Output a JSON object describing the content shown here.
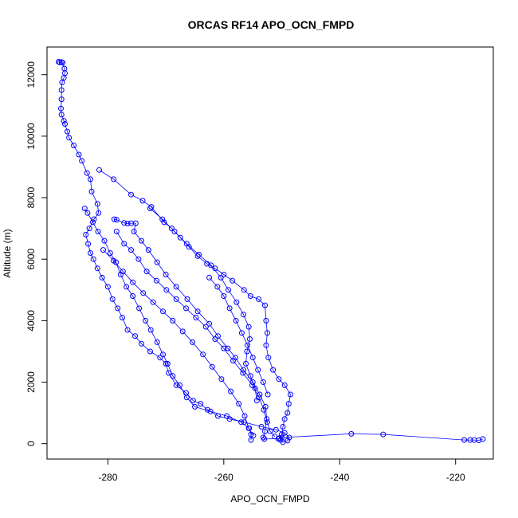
{
  "chart_data": {
    "type": "scatter",
    "title": "ORCAS RF14 APO_OCN_FMPD",
    "xlabel": "APO_OCN_FMPD",
    "ylabel": "Altitude (m)",
    "xlim": [
      -290.5,
      -213.5
    ],
    "ylim": [
      -500,
      12900
    ],
    "x_ticks": [
      -280,
      -260,
      -240,
      -220
    ],
    "x_tick_labels": [
      "-280",
      "-260",
      "-240",
      "-220"
    ],
    "y_ticks": [
      0,
      2000,
      4000,
      6000,
      8000,
      10000,
      12000
    ],
    "y_tick_labels": [
      "0",
      "2000",
      "4000",
      "6000",
      "8000",
      "10000",
      "12000"
    ],
    "grid": false,
    "legend": "none",
    "marker": "open-circle",
    "color": "#0000ff",
    "connected": true,
    "series": [
      {
        "values": [
          {
            "x": -288.5,
            "y": 12420
          },
          {
            "x": -288.3,
            "y": 12400
          },
          {
            "x": -288.0,
            "y": 12410
          },
          {
            "x": -287.8,
            "y": 12390
          },
          {
            "x": -287.5,
            "y": 12200
          },
          {
            "x": -287.4,
            "y": 12050
          },
          {
            "x": -287.6,
            "y": 11900
          },
          {
            "x": -287.9,
            "y": 11750
          },
          {
            "x": -288.0,
            "y": 11500
          },
          {
            "x": -288.0,
            "y": 11200
          },
          {
            "x": -288.1,
            "y": 10900
          },
          {
            "x": -288.0,
            "y": 10700
          },
          {
            "x": -287.6,
            "y": 10500
          },
          {
            "x": -287.4,
            "y": 10400
          },
          {
            "x": -287.0,
            "y": 10150
          },
          {
            "x": -286.7,
            "y": 9950
          },
          {
            "x": -285.9,
            "y": 9700
          },
          {
            "x": -285.0,
            "y": 9400
          },
          {
            "x": -284.5,
            "y": 9200
          },
          {
            "x": -283.6,
            "y": 8800
          },
          {
            "x": -283.0,
            "y": 8600
          },
          {
            "x": -282.8,
            "y": 8200
          },
          {
            "x": -281.8,
            "y": 7800
          },
          {
            "x": -281.6,
            "y": 7500
          },
          {
            "x": -282.4,
            "y": 7300
          },
          {
            "x": -283.2,
            "y": 7000
          },
          {
            "x": -283.8,
            "y": 6800
          },
          {
            "x": -283.4,
            "y": 6500
          },
          {
            "x": -283.0,
            "y": 6200
          },
          {
            "x": -282.5,
            "y": 6000
          },
          {
            "x": -281.8,
            "y": 5700
          },
          {
            "x": -281.0,
            "y": 5400
          },
          {
            "x": -280.0,
            "y": 5100
          },
          {
            "x": -279.2,
            "y": 4700
          },
          {
            "x": -278.3,
            "y": 4400
          },
          {
            "x": -277.5,
            "y": 4100
          },
          {
            "x": -276.6,
            "y": 3700
          },
          {
            "x": -275.3,
            "y": 3500
          },
          {
            "x": -274.2,
            "y": 3250
          },
          {
            "x": -272.7,
            "y": 3000
          },
          {
            "x": -271.0,
            "y": 2800
          },
          {
            "x": -270.0,
            "y": 2600
          },
          {
            "x": -269.5,
            "y": 2300
          },
          {
            "x": -268.2,
            "y": 1900
          },
          {
            "x": -266.5,
            "y": 1650
          },
          {
            "x": -265.3,
            "y": 1400
          },
          {
            "x": -264.0,
            "y": 1300
          },
          {
            "x": -262.8,
            "y": 1100
          },
          {
            "x": -261.0,
            "y": 900
          },
          {
            "x": -259.0,
            "y": 800
          },
          {
            "x": -256.5,
            "y": 700
          },
          {
            "x": -253.5,
            "y": 550
          },
          {
            "x": -251.0,
            "y": 450
          },
          {
            "x": -249.5,
            "y": 350
          },
          {
            "x": -248.7,
            "y": 200
          },
          {
            "x": -249.0,
            "y": 100
          },
          {
            "x": -249.8,
            "y": 50
          },
          {
            "x": -250.2,
            "y": 120
          },
          {
            "x": -250.0,
            "y": 300
          },
          {
            "x": -249.8,
            "y": 550
          },
          {
            "x": -249.5,
            "y": 800
          },
          {
            "x": -249.0,
            "y": 1000
          },
          {
            "x": -248.8,
            "y": 1300
          },
          {
            "x": -248.5,
            "y": 1600
          },
          {
            "x": -249.5,
            "y": 1900
          },
          {
            "x": -250.5,
            "y": 2100
          },
          {
            "x": -251.5,
            "y": 2400
          },
          {
            "x": -252.3,
            "y": 2800
          },
          {
            "x": -252.7,
            "y": 3200
          },
          {
            "x": -252.5,
            "y": 3600
          },
          {
            "x": -252.7,
            "y": 4000
          },
          {
            "x": -252.9,
            "y": 4500
          },
          {
            "x": -254.0,
            "y": 4700
          },
          {
            "x": -255.4,
            "y": 4800
          },
          {
            "x": -256.5,
            "y": 5000
          },
          {
            "x": -258.5,
            "y": 5300
          },
          {
            "x": -260.0,
            "y": 5500
          },
          {
            "x": -261.5,
            "y": 5700
          },
          {
            "x": -262.9,
            "y": 5850
          },
          {
            "x": -264.5,
            "y": 6100
          },
          {
            "x": -266.0,
            "y": 6400
          },
          {
            "x": -267.5,
            "y": 6700
          },
          {
            "x": -269.0,
            "y": 7000
          },
          {
            "x": -270.3,
            "y": 7200
          },
          {
            "x": -272.5,
            "y": 7700
          },
          {
            "x": -274.0,
            "y": 7900
          },
          {
            "x": -276.0,
            "y": 8100
          },
          {
            "x": -279.0,
            "y": 8600
          },
          {
            "x": -281.5,
            "y": 8900
          }
        ]
      },
      {
        "values": [
          {
            "x": -278.9,
            "y": 7300
          },
          {
            "x": -278.5,
            "y": 7280
          },
          {
            "x": -277.2,
            "y": 7180
          },
          {
            "x": -276.6,
            "y": 7160
          },
          {
            "x": -276.0,
            "y": 7170
          },
          {
            "x": -275.2,
            "y": 7170
          },
          {
            "x": -275.5,
            "y": 6900
          },
          {
            "x": -274.2,
            "y": 6600
          },
          {
            "x": -273.0,
            "y": 6300
          },
          {
            "x": -271.5,
            "y": 5900
          },
          {
            "x": -270.0,
            "y": 5500
          },
          {
            "x": -268.2,
            "y": 5100
          },
          {
            "x": -266.3,
            "y": 4700
          },
          {
            "x": -264.5,
            "y": 4300
          },
          {
            "x": -262.5,
            "y": 3900
          },
          {
            "x": -261.0,
            "y": 3500
          },
          {
            "x": -259.3,
            "y": 3100
          },
          {
            "x": -258.0,
            "y": 2800
          },
          {
            "x": -256.6,
            "y": 2400
          },
          {
            "x": -255.0,
            "y": 2000
          },
          {
            "x": -253.8,
            "y": 1600
          },
          {
            "x": -252.8,
            "y": 1200
          },
          {
            "x": -252.6,
            "y": 800
          },
          {
            "x": -252.9,
            "y": 400
          },
          {
            "x": -253.2,
            "y": 200
          },
          {
            "x": -253.0,
            "y": 150
          },
          {
            "x": -250.6,
            "y": 160
          },
          {
            "x": -250.4,
            "y": 180
          },
          {
            "x": -250.0,
            "y": 200
          },
          {
            "x": -238.0,
            "y": 320
          },
          {
            "x": -232.5,
            "y": 300
          },
          {
            "x": -218.5,
            "y": 120
          },
          {
            "x": -217.5,
            "y": 120
          },
          {
            "x": -216.8,
            "y": 120
          },
          {
            "x": -216.0,
            "y": 110
          },
          {
            "x": -215.3,
            "y": 150
          }
        ]
      },
      {
        "values": [
          {
            "x": -284.0,
            "y": 7650
          },
          {
            "x": -283.5,
            "y": 7500
          },
          {
            "x": -282.6,
            "y": 7200
          },
          {
            "x": -281.7,
            "y": 6900
          },
          {
            "x": -280.6,
            "y": 6600
          },
          {
            "x": -279.6,
            "y": 6200
          },
          {
            "x": -278.6,
            "y": 5900
          },
          {
            "x": -277.8,
            "y": 5500
          },
          {
            "x": -276.8,
            "y": 5100
          },
          {
            "x": -275.7,
            "y": 4800
          },
          {
            "x": -274.6,
            "y": 4400
          },
          {
            "x": -273.5,
            "y": 4000
          },
          {
            "x": -272.6,
            "y": 3700
          },
          {
            "x": -271.5,
            "y": 3300
          },
          {
            "x": -270.5,
            "y": 2900
          },
          {
            "x": -269.7,
            "y": 2600
          },
          {
            "x": -268.8,
            "y": 2200
          },
          {
            "x": -267.6,
            "y": 1900
          },
          {
            "x": -266.4,
            "y": 1500
          },
          {
            "x": -265.0,
            "y": 1200
          },
          {
            "x": -262.3,
            "y": 1050
          },
          {
            "x": -259.5,
            "y": 900
          },
          {
            "x": -257.0,
            "y": 700
          },
          {
            "x": -255.6,
            "y": 500
          },
          {
            "x": -255.3,
            "y": 300
          },
          {
            "x": -255.3,
            "y": 120
          }
        ]
      },
      {
        "values": [
          {
            "x": -278.5,
            "y": 6900
          },
          {
            "x": -277.2,
            "y": 6500
          },
          {
            "x": -276.0,
            "y": 6300
          },
          {
            "x": -274.7,
            "y": 6000
          },
          {
            "x": -273.3,
            "y": 5600
          },
          {
            "x": -271.6,
            "y": 5300
          },
          {
            "x": -269.9,
            "y": 5000
          },
          {
            "x": -268.2,
            "y": 4700
          },
          {
            "x": -266.5,
            "y": 4400
          },
          {
            "x": -264.8,
            "y": 4100
          },
          {
            "x": -263.1,
            "y": 3800
          },
          {
            "x": -261.5,
            "y": 3400
          },
          {
            "x": -260.0,
            "y": 3100
          },
          {
            "x": -258.4,
            "y": 2700
          },
          {
            "x": -256.7,
            "y": 2300
          },
          {
            "x": -255.1,
            "y": 1900
          },
          {
            "x": -253.9,
            "y": 1500
          },
          {
            "x": -253.1,
            "y": 1100
          },
          {
            "x": -252.5,
            "y": 700
          },
          {
            "x": -252.0,
            "y": 400
          },
          {
            "x": -251.2,
            "y": 230
          }
        ]
      },
      {
        "values": [
          {
            "x": -280.8,
            "y": 6300
          },
          {
            "x": -279.0,
            "y": 5950
          },
          {
            "x": -277.4,
            "y": 5600
          },
          {
            "x": -275.7,
            "y": 5250
          },
          {
            "x": -273.9,
            "y": 4900
          },
          {
            "x": -272.2,
            "y": 4600
          },
          {
            "x": -270.5,
            "y": 4300
          },
          {
            "x": -268.8,
            "y": 4000
          },
          {
            "x": -267.1,
            "y": 3650
          },
          {
            "x": -265.4,
            "y": 3300
          },
          {
            "x": -263.6,
            "y": 2900
          },
          {
            "x": -262.0,
            "y": 2500
          },
          {
            "x": -260.4,
            "y": 2100
          },
          {
            "x": -258.8,
            "y": 1700
          },
          {
            "x": -257.4,
            "y": 1300
          },
          {
            "x": -256.4,
            "y": 900
          },
          {
            "x": -255.7,
            "y": 500
          },
          {
            "x": -254.9,
            "y": 260
          }
        ]
      },
      {
        "values": [
          {
            "x": -272.7,
            "y": 7650
          },
          {
            "x": -270.6,
            "y": 7300
          },
          {
            "x": -268.5,
            "y": 6900
          },
          {
            "x": -266.4,
            "y": 6500
          },
          {
            "x": -264.3,
            "y": 6150
          },
          {
            "x": -262.2,
            "y": 5800
          },
          {
            "x": -260.5,
            "y": 5400
          },
          {
            "x": -259.2,
            "y": 5000
          },
          {
            "x": -257.8,
            "y": 4600
          },
          {
            "x": -256.6,
            "y": 4200
          },
          {
            "x": -255.7,
            "y": 3800
          },
          {
            "x": -255.5,
            "y": 3400
          },
          {
            "x": -256.0,
            "y": 3000
          },
          {
            "x": -256.2,
            "y": 2600
          },
          {
            "x": -255.4,
            "y": 2200
          },
          {
            "x": -254.6,
            "y": 1800
          },
          {
            "x": -254.3,
            "y": 1400
          }
        ]
      },
      {
        "values": [
          {
            "x": -262.5,
            "y": 5400
          },
          {
            "x": -261.1,
            "y": 5100
          },
          {
            "x": -260.0,
            "y": 4800
          },
          {
            "x": -259.0,
            "y": 4400
          },
          {
            "x": -257.9,
            "y": 4000
          },
          {
            "x": -256.9,
            "y": 3600
          },
          {
            "x": -255.9,
            "y": 3200
          },
          {
            "x": -255.0,
            "y": 2800
          },
          {
            "x": -254.1,
            "y": 2400
          },
          {
            "x": -253.2,
            "y": 2000
          },
          {
            "x": -252.4,
            "y": 1600
          }
        ]
      }
    ]
  }
}
